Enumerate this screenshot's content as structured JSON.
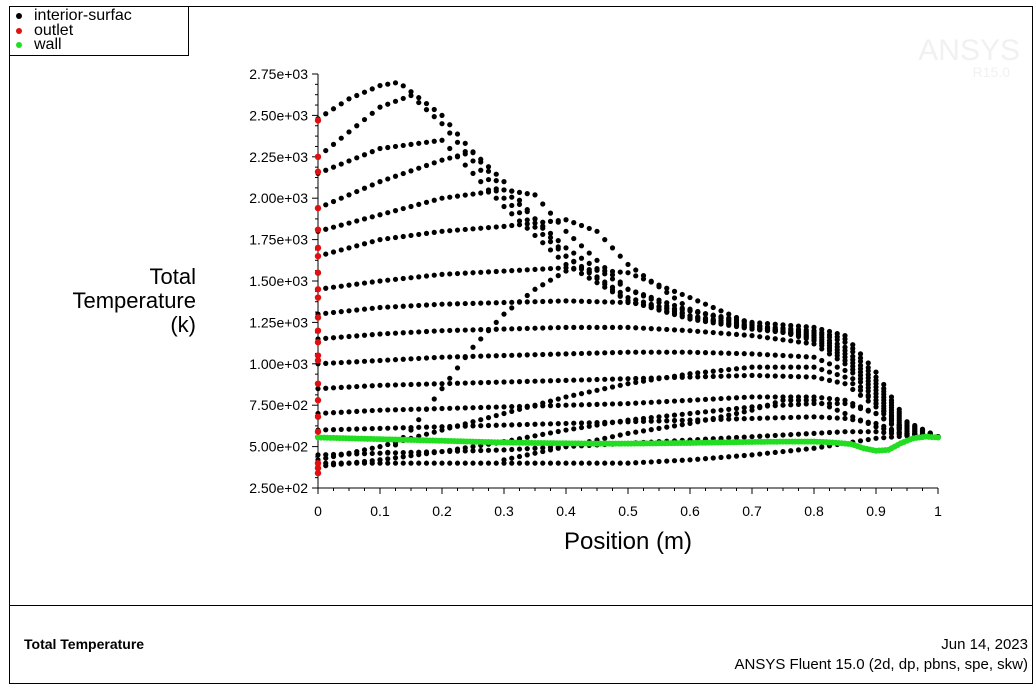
{
  "legend": {
    "items": [
      {
        "label": "interior-surfac",
        "color": "#000000"
      },
      {
        "label": "outlet",
        "color": "#e01010"
      },
      {
        "label": "wall",
        "color": "#22dd22"
      }
    ]
  },
  "watermark": {
    "brand": "ANSYS",
    "version": "R15.0"
  },
  "footer": {
    "title": "Total Temperature",
    "date": "Jun 14, 2023",
    "version": "ANSYS Fluent 15.0 (2d, dp, pbns, spe, skw)"
  },
  "chart_data": {
    "type": "scatter",
    "title": "",
    "xlabel": "Position (m)",
    "ylabel_lines": [
      "Total",
      "Temperature",
      "(k)"
    ],
    "xlim": [
      0,
      1
    ],
    "ylim": [
      250,
      2750
    ],
    "xticks": [
      0,
      0.1,
      0.2,
      0.3,
      0.4,
      0.5,
      0.6,
      0.7,
      0.8,
      0.9,
      1
    ],
    "xtick_labels": [
      "0",
      "0.1",
      "0.2",
      "0.3",
      "0.4",
      "0.5",
      "0.6",
      "0.7",
      "0.8",
      "0.9",
      "1"
    ],
    "yticks": [
      250,
      500,
      750,
      1000,
      1250,
      1500,
      1750,
      2000,
      2250,
      2500,
      2750
    ],
    "ytick_labels": [
      "2.50e+02",
      "5.00e+02",
      "7.50e+02",
      "1.00e+03",
      "1.25e+03",
      "1.50e+03",
      "1.75e+03",
      "2.00e+03",
      "2.25e+03",
      "2.50e+03",
      "2.75e+03"
    ],
    "grid": false,
    "legend_position": "top-left",
    "series": [
      {
        "name": "interior-surfac",
        "color": "#000000",
        "curves": [
          {
            "x": [
              0,
              0.05,
              0.1,
              0.13,
              0.2,
              0.3,
              0.4,
              0.5,
              0.6,
              0.7,
              0.8,
              0.85,
              0.9,
              0.95,
              1
            ],
            "y": [
              2480,
              2600,
              2680,
              2700,
              2500,
              2050,
              1700,
              1450,
              1320,
              1250,
              1220,
              1170,
              950,
              650,
              560
            ]
          },
          {
            "x": [
              0,
              0.05,
              0.1,
              0.15,
              0.2,
              0.3,
              0.4,
              0.5,
              0.6,
              0.7,
              0.8,
              0.85,
              0.9,
              0.95,
              1
            ],
            "y": [
              2250,
              2400,
              2550,
              2620,
              2450,
              2000,
              1650,
              1400,
              1290,
              1230,
              1200,
              1150,
              920,
              640,
              560
            ]
          },
          {
            "x": [
              0,
              0.1,
              0.2,
              0.3,
              0.4,
              0.5,
              0.6,
              0.7,
              0.8,
              0.85,
              0.9,
              0.95,
              1
            ],
            "y": [
              2150,
              2300,
              2350,
              1950,
              1600,
              1380,
              1280,
              1220,
              1190,
              1130,
              900,
              630,
              560
            ]
          },
          {
            "x": [
              0,
              0.1,
              0.2,
              0.25,
              0.3,
              0.4,
              0.5,
              0.6,
              0.7,
              0.8,
              0.85,
              0.9,
              0.95,
              1
            ],
            "y": [
              1940,
              2100,
              2230,
              2280,
              2100,
              1650,
              1380,
              1270,
              1210,
              1180,
              1100,
              880,
              620,
              560
            ]
          },
          {
            "x": [
              0,
              0.1,
              0.2,
              0.3,
              0.35,
              0.4,
              0.5,
              0.6,
              0.7,
              0.8,
              0.85,
              0.9,
              0.95,
              1
            ],
            "y": [
              1800,
              1900,
              2000,
              2050,
              2020,
              1800,
              1450,
              1290,
              1210,
              1170,
              1080,
              860,
              610,
              560
            ]
          },
          {
            "x": [
              0,
              0.1,
              0.2,
              0.3,
              0.4,
              0.45,
              0.5,
              0.6,
              0.7,
              0.8,
              0.85,
              0.9,
              0.95,
              1
            ],
            "y": [
              1650,
              1750,
              1800,
              1830,
              1870,
              1800,
              1600,
              1330,
              1220,
              1160,
              1060,
              840,
              600,
              560
            ]
          },
          {
            "x": [
              0,
              0.1,
              0.2,
              0.3,
              0.4,
              0.5,
              0.6,
              0.7,
              0.8,
              0.85,
              0.9,
              0.95,
              1
            ],
            "y": [
              1450,
              1500,
              1540,
              1560,
              1580,
              1550,
              1400,
              1240,
              1150,
              1040,
              820,
              590,
              560
            ]
          },
          {
            "x": [
              0,
              0.1,
              0.2,
              0.3,
              0.4,
              0.5,
              0.6,
              0.7,
              0.8,
              0.85,
              0.9,
              0.95,
              1
            ],
            "y": [
              1300,
              1340,
              1360,
              1370,
              1380,
              1370,
              1320,
              1240,
              1140,
              1020,
              800,
              580,
              560
            ]
          },
          {
            "x": [
              0,
              0.1,
              0.2,
              0.3,
              0.4,
              0.5,
              0.6,
              0.7,
              0.8,
              0.85,
              0.9,
              0.95,
              1
            ],
            "y": [
              1150,
              1180,
              1200,
              1210,
              1220,
              1220,
              1200,
              1170,
              1120,
              1000,
              780,
              580,
              560
            ]
          },
          {
            "x": [
              0,
              0.1,
              0.2,
              0.3,
              0.4,
              0.5,
              0.6,
              0.7,
              0.8,
              0.85,
              0.9,
              0.95,
              1
            ],
            "y": [
              1000,
              1020,
              1040,
              1050,
              1060,
              1070,
              1070,
              1060,
              1040,
              960,
              760,
              570,
              560
            ]
          },
          {
            "x": [
              0,
              0.1,
              0.2,
              0.3,
              0.4,
              0.5,
              0.6,
              0.7,
              0.8,
              0.85,
              0.9,
              0.95,
              1
            ],
            "y": [
              850,
              870,
              880,
              890,
              900,
              910,
              920,
              930,
              920,
              880,
              740,
              570,
              560
            ]
          },
          {
            "x": [
              0,
              0.1,
              0.2,
              0.3,
              0.4,
              0.5,
              0.6,
              0.7,
              0.8,
              0.85,
              0.9,
              0.95,
              1
            ],
            "y": [
              700,
              720,
              730,
              740,
              750,
              760,
              780,
              800,
              800,
              780,
              700,
              570,
              560
            ]
          },
          {
            "x": [
              0,
              0.1,
              0.2,
              0.3,
              0.4,
              0.5,
              0.6,
              0.7,
              0.8,
              0.85,
              0.9,
              0.95,
              1
            ],
            "y": [
              600,
              610,
              620,
              630,
              640,
              650,
              660,
              670,
              680,
              670,
              640,
              570,
              560
            ]
          },
          {
            "x": [
              0,
              0.1,
              0.2,
              0.3,
              0.4,
              0.5,
              0.6,
              0.7,
              0.8,
              0.85,
              0.9,
              0.95,
              1
            ],
            "y": [
              450,
              460,
              470,
              480,
              500,
              520,
              540,
              560,
              580,
              590,
              590,
              570,
              560
            ]
          },
          {
            "x": [
              0,
              0.1,
              0.2,
              0.3,
              0.4,
              0.5,
              0.6,
              0.7,
              0.8,
              0.85,
              0.9,
              0.95,
              1
            ],
            "y": [
              400,
              400,
              400,
              400,
              400,
              400,
              420,
              450,
              490,
              520,
              550,
              565,
              560
            ]
          },
          {
            "x": [
              0,
              0.1,
              0.2,
              0.3,
              0.4,
              0.5,
              0.6,
              0.7,
              0.8,
              0.85,
              0.9,
              0.95,
              1
            ],
            "y": [
              380,
              420,
              470,
              530,
              600,
              660,
              700,
              740,
              760,
              760,
              700,
              580,
              560
            ]
          },
          {
            "x": [
              0,
              0.1,
              0.2,
              0.3,
              0.4,
              0.5,
              0.6,
              0.7,
              0.8,
              0.85,
              0.9,
              0.95,
              1
            ],
            "y": [
              420,
              500,
              600,
              700,
              800,
              880,
              940,
              980,
              980,
              920,
              760,
              580,
              560
            ]
          },
          {
            "x": [
              0.1,
              0.15,
              0.2,
              0.25,
              0.3,
              0.35,
              0.4
            ],
            "y": [
              420,
              600,
              850,
              1100,
              1300,
              1450,
              1560
            ]
          },
          {
            "x": [
              0.3,
              0.4,
              0.5,
              0.6,
              0.7,
              0.75,
              0.8,
              0.85,
              0.9,
              0.95
            ],
            "y": [
              420,
              500,
              580,
              640,
              720,
              780,
              780,
              700,
              620,
              570
            ]
          }
        ]
      },
      {
        "name": "outlet",
        "color": "#e01010",
        "points": {
          "x": [
            0,
            0,
            0,
            0,
            0,
            0,
            0,
            0,
            0,
            0,
            0,
            0,
            0,
            0,
            0,
            0,
            0,
            0,
            0,
            0,
            0,
            0
          ],
          "y": [
            2470,
            2250,
            2160,
            1940,
            1810,
            1700,
            1650,
            1550,
            1450,
            1400,
            1280,
            1200,
            1130,
            1050,
            1020,
            880,
            780,
            680,
            590,
            400,
            370,
            340
          ]
        }
      },
      {
        "name": "wall",
        "color": "#22dd22",
        "points": {
          "x": [
            0,
            0.05,
            0.1,
            0.15,
            0.2,
            0.25,
            0.3,
            0.35,
            0.4,
            0.45,
            0.5,
            0.55,
            0.6,
            0.65,
            0.7,
            0.75,
            0.8,
            0.83,
            0.86,
            0.88,
            0.9,
            0.92,
            0.94,
            0.96,
            0.98,
            1
          ],
          "y": [
            555,
            550,
            545,
            540,
            535,
            530,
            525,
            522,
            520,
            518,
            518,
            520,
            522,
            525,
            528,
            530,
            530,
            525,
            515,
            490,
            475,
            480,
            520,
            550,
            560,
            555
          ]
        }
      }
    ]
  }
}
